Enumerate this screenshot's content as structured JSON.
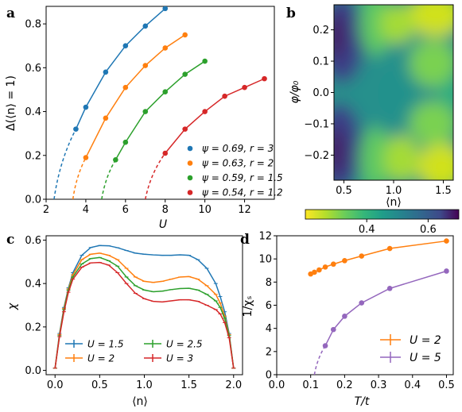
{
  "colors": {
    "blue": "#1f77b4",
    "orange": "#ff7f0e",
    "green": "#2ca02c",
    "red": "#d62728",
    "purple": "#9467bd"
  },
  "chart_data": [
    {
      "panel": "a",
      "type": "line",
      "xlabel": "U",
      "ylabel": "Δ(⟨n⟩ = 1)",
      "xlim": [
        2,
        13.5
      ],
      "ylim": [
        0,
        0.88
      ],
      "xticks": [
        "2",
        "4",
        "6",
        "8",
        "10",
        "12"
      ],
      "yticks": [
        "0.0",
        "0.2",
        "0.4",
        "0.6",
        "0.8"
      ],
      "legend_position": "lower-right",
      "series": [
        {
          "name": "ψ = 0.69, r = 3",
          "color": "#1f77b4",
          "dash_from": [
            2.4,
            0
          ],
          "x": [
            3.5,
            4,
            5,
            6,
            7,
            8
          ],
          "y": [
            0.32,
            0.42,
            0.58,
            0.7,
            0.79,
            0.87
          ]
        },
        {
          "name": "ψ = 0.63, r = 2",
          "color": "#ff7f0e",
          "dash_from": [
            3.35,
            0
          ],
          "x": [
            4,
            5,
            6,
            7,
            8,
            9
          ],
          "y": [
            0.19,
            0.37,
            0.51,
            0.61,
            0.69,
            0.75
          ]
        },
        {
          "name": "ψ = 0.59, r = 1.5",
          "color": "#2ca02c",
          "dash_from": [
            4.8,
            0
          ],
          "x": [
            5.5,
            6,
            7,
            8,
            9,
            10
          ],
          "y": [
            0.18,
            0.26,
            0.4,
            0.49,
            0.57,
            0.63
          ]
        },
        {
          "name": "ψ = 0.54, r = 1.2",
          "color": "#d62728",
          "dash_from": [
            7,
            0
          ],
          "x": [
            8,
            9,
            10,
            11,
            12,
            13
          ],
          "y": [
            0.21,
            0.32,
            0.4,
            0.47,
            0.51,
            0.55
          ]
        }
      ]
    },
    {
      "panel": "b",
      "type": "heatmap",
      "xlabel": "⟨n⟩",
      "ylabel": "φ/φ₀",
      "xlim": [
        0.4,
        1.6
      ],
      "ylim": [
        -0.28,
        0.28
      ],
      "xticks": [
        "0.5",
        "1.0",
        "1.5"
      ],
      "yticks": [
        "0.2",
        "0.1",
        "0.0",
        "−0.1",
        "−0.2"
      ],
      "colorbar": {
        "colormap": "viridis_r",
        "range": [
          0.2,
          0.7
        ],
        "ticks": [
          "0.4",
          "0.6"
        ]
      }
    },
    {
      "panel": "c",
      "type": "line",
      "xlabel": "⟨n⟩",
      "ylabel": "χ",
      "xlim": [
        -0.1,
        2.1
      ],
      "ylim": [
        -0.02,
        0.62
      ],
      "xticks": [
        "0.0",
        "0.5",
        "1.0",
        "1.5",
        "2.0"
      ],
      "yticks": [
        "0.0",
        "0.2",
        "0.4",
        "0.6"
      ],
      "legend_position": "lower-center",
      "series": [
        {
          "name": "U = 1.5",
          "color": "#1f77b4",
          "x": [
            0,
            0.05,
            0.1,
            0.15,
            0.2,
            0.3,
            0.4,
            0.5,
            0.6,
            0.7,
            0.8,
            0.9,
            1.0,
            1.1,
            1.2,
            1.3,
            1.4,
            1.5,
            1.6,
            1.7,
            1.8,
            1.85,
            1.9,
            1.95,
            2.0
          ],
          "y": [
            0.01,
            0.17,
            0.29,
            0.38,
            0.45,
            0.53,
            0.566,
            0.575,
            0.574,
            0.565,
            0.552,
            0.54,
            0.535,
            0.532,
            0.53,
            0.53,
            0.532,
            0.53,
            0.51,
            0.47,
            0.4,
            0.34,
            0.27,
            0.17,
            0.01
          ]
        },
        {
          "name": "U = 2",
          "color": "#ff7f0e",
          "x": [
            0,
            0.05,
            0.1,
            0.15,
            0.2,
            0.3,
            0.4,
            0.5,
            0.6,
            0.7,
            0.8,
            0.9,
            1.0,
            1.1,
            1.2,
            1.3,
            1.4,
            1.5,
            1.6,
            1.7,
            1.8,
            1.85,
            1.9,
            1.95,
            2.0
          ],
          "y": [
            0.01,
            0.165,
            0.285,
            0.375,
            0.44,
            0.51,
            0.535,
            0.54,
            0.53,
            0.51,
            0.47,
            0.43,
            0.41,
            0.405,
            0.41,
            0.42,
            0.43,
            0.432,
            0.42,
            0.39,
            0.35,
            0.31,
            0.25,
            0.165,
            0.01
          ]
        },
        {
          "name": "U = 2.5",
          "color": "#2ca02c",
          "x": [
            0,
            0.05,
            0.1,
            0.15,
            0.2,
            0.3,
            0.4,
            0.5,
            0.6,
            0.7,
            0.8,
            0.9,
            1.0,
            1.1,
            1.2,
            1.3,
            1.4,
            1.5,
            1.6,
            1.7,
            1.8,
            1.85,
            1.9,
            1.95,
            2.0
          ],
          "y": [
            0.01,
            0.16,
            0.28,
            0.37,
            0.43,
            0.49,
            0.515,
            0.52,
            0.505,
            0.48,
            0.43,
            0.39,
            0.37,
            0.362,
            0.365,
            0.372,
            0.377,
            0.378,
            0.37,
            0.35,
            0.32,
            0.29,
            0.24,
            0.16,
            0.01
          ]
        },
        {
          "name": "U = 3",
          "color": "#d62728",
          "x": [
            0,
            0.05,
            0.1,
            0.15,
            0.2,
            0.3,
            0.4,
            0.5,
            0.6,
            0.7,
            0.8,
            0.9,
            1.0,
            1.1,
            1.2,
            1.3,
            1.4,
            1.5,
            1.6,
            1.7,
            1.8,
            1.85,
            1.9,
            1.95,
            2.0
          ],
          "y": [
            0.01,
            0.155,
            0.27,
            0.36,
            0.42,
            0.475,
            0.495,
            0.497,
            0.485,
            0.45,
            0.4,
            0.355,
            0.33,
            0.318,
            0.315,
            0.32,
            0.325,
            0.325,
            0.318,
            0.3,
            0.28,
            0.26,
            0.22,
            0.15,
            0.01
          ]
        }
      ]
    },
    {
      "panel": "d",
      "type": "line",
      "xlabel": "T/t",
      "ylabel": "1/χₛ",
      "xlim": [
        0,
        0.52
      ],
      "ylim": [
        0,
        12
      ],
      "xticks": [
        "0.0",
        "0.1",
        "0.2",
        "0.3",
        "0.4",
        "0.5"
      ],
      "yticks": [
        "0",
        "2",
        "4",
        "6",
        "8",
        "10",
        "12"
      ],
      "legend_position": "lower-right",
      "series": [
        {
          "name": "U = 2",
          "color": "#ff7f0e",
          "x": [
            0.1,
            0.111,
            0.125,
            0.143,
            0.167,
            0.2,
            0.25,
            0.333,
            0.5
          ],
          "y": [
            8.7,
            8.85,
            9.05,
            9.3,
            9.55,
            9.85,
            10.25,
            10.9,
            11.55
          ]
        },
        {
          "name": "U = 5",
          "color": "#9467bd",
          "dash_from": [
            0.111,
            0
          ],
          "x": [
            0.143,
            0.167,
            0.2,
            0.25,
            0.333,
            0.5
          ],
          "y": [
            2.5,
            3.9,
            5.05,
            6.2,
            7.45,
            8.95
          ]
        }
      ]
    }
  ],
  "panel_labels": [
    "a",
    "b",
    "c",
    "d"
  ]
}
